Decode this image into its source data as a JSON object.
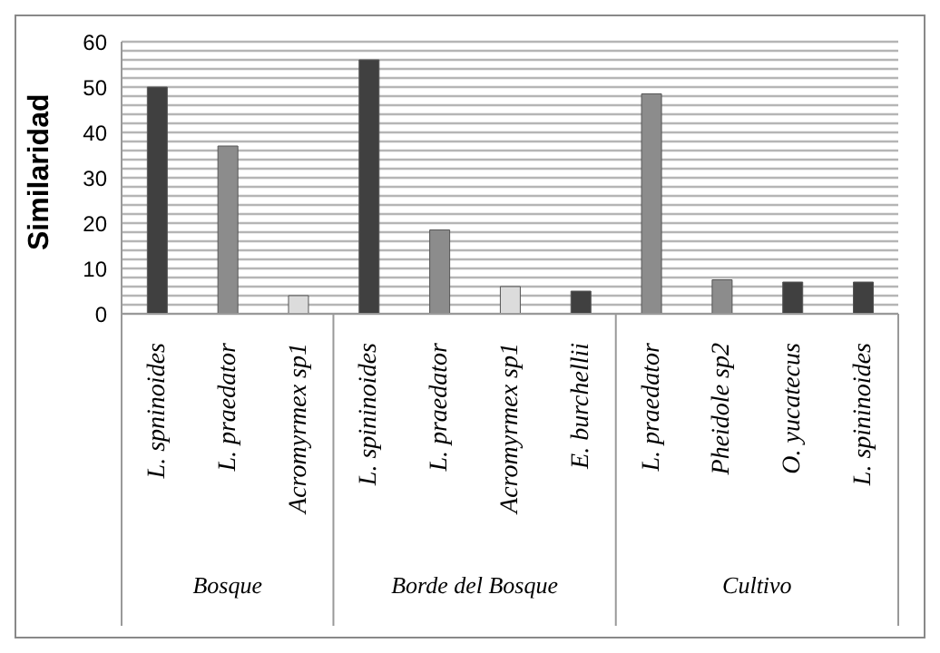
{
  "chart_data": {
    "type": "bar",
    "ylabel": "Similaridad",
    "categories": [
      "L. spninoides",
      "L. praedator",
      "Acromyrmex sp1",
      "L. spininoides",
      "L. praedator",
      "Acromyrmex sp1",
      "E. burchellii",
      "L. praedator",
      "Pheidole sp2",
      "O. yucatecus",
      "L. spininoides"
    ],
    "values": [
      50,
      37,
      4,
      56,
      18.5,
      6,
      5,
      48.5,
      7.5,
      7,
      7
    ],
    "colors": [
      "#404040",
      "#8c8c8c",
      "#dcdcdc",
      "#404040",
      "#8c8c8c",
      "#dcdcdc",
      "#404040",
      "#8c8c8c",
      "#8c8c8c",
      "#404040",
      "#404040"
    ],
    "annotations": [
      "Bosque",
      "Borde del Bosque",
      "Cultivo"
    ],
    "ylim": [
      0,
      60
    ],
    "yticks": [
      0,
      {
        "value": 2,
        "label": null
      },
      {
        "value": 4,
        "label": null
      },
      {
        "value": 6,
        "label": null
      },
      {
        "value": 8,
        "label": null
      },
      10,
      {
        "value": 12,
        "label": null
      },
      {
        "value": 14,
        "label": null
      },
      {
        "value": 16,
        "label": null
      },
      {
        "value": 18,
        "label": null
      },
      20,
      {
        "value": 22,
        "label": null
      },
      {
        "value": 24,
        "label": null
      },
      {
        "value": 26,
        "label": null
      },
      {
        "value": 28,
        "label": null
      },
      30,
      {
        "value": 32,
        "label": null
      },
      {
        "value": 34,
        "label": null
      },
      {
        "value": 36,
        "label": null
      },
      {
        "value": 38,
        "label": null
      },
      40,
      {
        "value": 42,
        "label": null
      },
      {
        "value": 44,
        "label": null
      },
      {
        "value": 46,
        "label": null
      },
      {
        "value": 48,
        "label": null
      },
      50,
      {
        "value": 52,
        "label": null
      },
      {
        "value": 54,
        "label": null
      },
      {
        "value": 56,
        "label": null
      },
      {
        "value": 58,
        "label": null
      },
      60
    ],
    "grid": "y"
  }
}
